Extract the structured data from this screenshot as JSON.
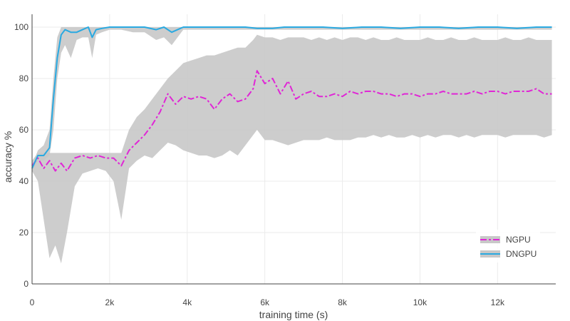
{
  "chart_data": {
    "type": "line",
    "title": "",
    "xlabel": "training time (s)",
    "ylabel": "accuracy %",
    "xlim": [
      0,
      13500
    ],
    "ylim": [
      0,
      105
    ],
    "x_ticks": [
      0,
      2000,
      4000,
      6000,
      8000,
      10000,
      12000
    ],
    "x_tick_labels": [
      "0",
      "2k",
      "4k",
      "6k",
      "8k",
      "10k",
      "12k"
    ],
    "y_ticks": [
      0,
      20,
      40,
      60,
      80,
      100
    ],
    "y_tick_labels": [
      "0",
      "20",
      "40",
      "60",
      "80",
      "100"
    ],
    "grid": true,
    "legend_position": "bottom-right",
    "series": [
      {
        "name": "NGPU",
        "style": "dash-dot",
        "color": "#e026d6",
        "band_color": "#c8c8c8",
        "x": [
          0,
          150,
          300,
          450,
          600,
          750,
          900,
          1100,
          1300,
          1500,
          1700,
          1900,
          2100,
          2300,
          2500,
          2700,
          2900,
          3100,
          3300,
          3500,
          3700,
          3900,
          4100,
          4300,
          4500,
          4700,
          4900,
          5100,
          5300,
          5500,
          5700,
          5800,
          6000,
          6200,
          6400,
          6600,
          6800,
          7000,
          7200,
          7400,
          7600,
          7800,
          8000,
          8200,
          8400,
          8600,
          8800,
          9000,
          9200,
          9400,
          9600,
          9800,
          10000,
          10200,
          10400,
          10600,
          10800,
          11000,
          11200,
          11400,
          11600,
          11800,
          12000,
          12200,
          12400,
          12600,
          12800,
          13000,
          13200,
          13400
        ],
        "mean": [
          46,
          49,
          45,
          48,
          44,
          47,
          44,
          49,
          50,
          49,
          50,
          49,
          49,
          46,
          52,
          55,
          58,
          62,
          67,
          74,
          70,
          73,
          72,
          73,
          72,
          68,
          72,
          74,
          71,
          72,
          76,
          83,
          78,
          80,
          74,
          79,
          72,
          74,
          75,
          73,
          73,
          74,
          73,
          75,
          74,
          75,
          75,
          74,
          74,
          73,
          74,
          74,
          73,
          74,
          74,
          75,
          74,
          74,
          74,
          75,
          74,
          75,
          75,
          74,
          75,
          75,
          75,
          76,
          74,
          74
        ],
        "lower": [
          44,
          40,
          25,
          10,
          15,
          8,
          20,
          38,
          43,
          44,
          45,
          44,
          40,
          25,
          45,
          48,
          50,
          49,
          52,
          55,
          54,
          52,
          51,
          50,
          50,
          49,
          50,
          52,
          50,
          54,
          58,
          60,
          56,
          56,
          55,
          54,
          55,
          56,
          56,
          56,
          57,
          56,
          56,
          56,
          57,
          57,
          58,
          57,
          58,
          57,
          57,
          58,
          57,
          58,
          57,
          58,
          58,
          57,
          58,
          57,
          58,
          58,
          58,
          57,
          58,
          58,
          58,
          58,
          57,
          58
        ],
        "upper": [
          48,
          51,
          51,
          51,
          51,
          51,
          51,
          51,
          51,
          51,
          51,
          51,
          51,
          51,
          60,
          65,
          68,
          72,
          76,
          80,
          83,
          86,
          87,
          88,
          89,
          89,
          90,
          91,
          92,
          92,
          95,
          97,
          96,
          96,
          95,
          96,
          96,
          96,
          95,
          96,
          95,
          96,
          95,
          96,
          96,
          95,
          96,
          95,
          95,
          96,
          95,
          95,
          95,
          96,
          95,
          95,
          96,
          95,
          95,
          96,
          95,
          95,
          95,
          96,
          95,
          95,
          96,
          95,
          95,
          95
        ]
      },
      {
        "name": "DNGPU",
        "style": "solid",
        "color": "#29a9e1",
        "band_color": "#c8c8c8",
        "x": [
          0,
          150,
          300,
          450,
          550,
          650,
          750,
          850,
          1000,
          1150,
          1300,
          1450,
          1550,
          1650,
          1800,
          2000,
          2300,
          2600,
          2900,
          3200,
          3400,
          3600,
          3900,
          4500,
          5200,
          5500,
          5800,
          6200,
          6500,
          7000,
          7500,
          8000,
          8500,
          9000,
          9500,
          10000,
          10500,
          11000,
          11500,
          12000,
          12500,
          13000,
          13400
        ],
        "mean": [
          45,
          50,
          50,
          53,
          72,
          88,
          97,
          99,
          98,
          98,
          99,
          100,
          96,
          99,
          99.5,
          100,
          100,
          100,
          100,
          99,
          100,
          98,
          100,
          100,
          100,
          100,
          99.5,
          99.5,
          100,
          100,
          100,
          99.5,
          100,
          100,
          99.5,
          100,
          100,
          99.5,
          100,
          100,
          99.5,
          100,
          100
        ],
        "lower": [
          44,
          48,
          48,
          50,
          60,
          80,
          90,
          93,
          88,
          95,
          96,
          96,
          88,
          97,
          98,
          99,
          99,
          98,
          98,
          95,
          96,
          93,
          99,
          99,
          99,
          99,
          99,
          99,
          99,
          99,
          99,
          99,
          99,
          99,
          99,
          99,
          99,
          99,
          99,
          99,
          99,
          99,
          99
        ],
        "upper": [
          46,
          52,
          54,
          60,
          80,
          96,
          100,
          100,
          100,
          100,
          100,
          100,
          100,
          100,
          100,
          100,
          100,
          100,
          100,
          100,
          100,
          100,
          100,
          100,
          100,
          100,
          100,
          100,
          100,
          100,
          100,
          100,
          100,
          100,
          100,
          100,
          100,
          100,
          100,
          100,
          100,
          100,
          100
        ]
      }
    ]
  }
}
